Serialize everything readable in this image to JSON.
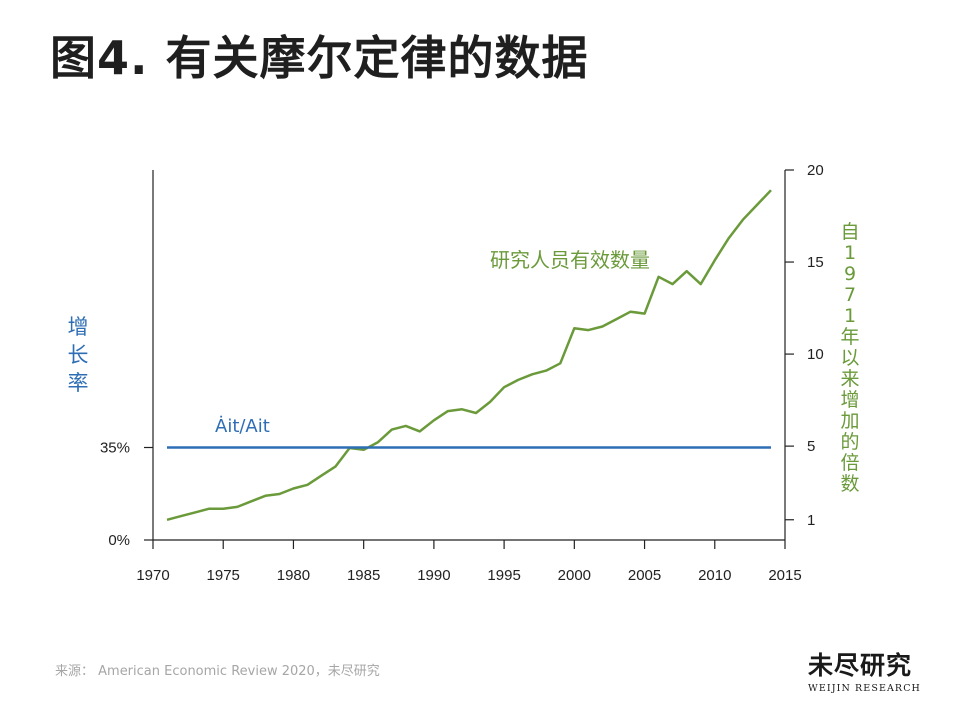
{
  "title": "图4. 有关摩尔定律的数据",
  "source": "来源： American Economic Review 2020，未尽研究",
  "logo": {
    "cn": "未尽研究",
    "en": "WEIJIN RESEARCH"
  },
  "colors": {
    "growth": "#2e6eb5",
    "researchers": "#6a9a3a",
    "axis": "#222222"
  },
  "chart_data": {
    "type": "line",
    "x_range": [
      1970,
      2015
    ],
    "x_ticks": [
      1970,
      1975,
      1980,
      1985,
      1990,
      1995,
      2000,
      2005,
      2010,
      2015
    ],
    "left_axis": {
      "label": "增长率",
      "ticks": [
        {
          "value": 0,
          "label": "0%"
        },
        {
          "value": 35,
          "label": "35%"
        }
      ],
      "range": [
        0,
        140
      ]
    },
    "right_axis": {
      "label": "自1971年以来增加的倍数",
      "ticks": [
        1,
        5,
        10,
        15,
        20
      ],
      "range": [
        -0.1,
        20
      ]
    },
    "series": [
      {
        "name": "研究人员有效数量",
        "axis": "right",
        "x": [
          1971,
          1972,
          1973,
          1974,
          1975,
          1976,
          1977,
          1978,
          1979,
          1980,
          1981,
          1982,
          1983,
          1984,
          1985,
          1986,
          1987,
          1988,
          1989,
          1990,
          1991,
          1992,
          1993,
          1994,
          1995,
          1996,
          1997,
          1998,
          1999,
          2000,
          2001,
          2002,
          2003,
          2004,
          2005,
          2006,
          2007,
          2008,
          2009,
          2010,
          2011,
          2012,
          2013,
          2014
        ],
        "y": [
          1.0,
          1.2,
          1.4,
          1.6,
          1.6,
          1.7,
          2.0,
          2.3,
          2.4,
          2.7,
          2.9,
          3.4,
          3.9,
          4.9,
          4.8,
          5.2,
          5.9,
          6.1,
          5.8,
          6.4,
          6.9,
          7.0,
          6.8,
          7.4,
          8.2,
          8.6,
          8.9,
          9.1,
          9.5,
          11.4,
          11.3,
          11.5,
          11.9,
          12.3,
          12.2,
          14.2,
          13.8,
          14.5,
          13.8,
          15.1,
          16.3,
          17.3,
          18.1,
          18.9
        ]
      },
      {
        "name": "Ȧit/Ait",
        "axis": "left",
        "x": [
          1971,
          2014
        ],
        "y": [
          35,
          35
        ]
      }
    ]
  }
}
